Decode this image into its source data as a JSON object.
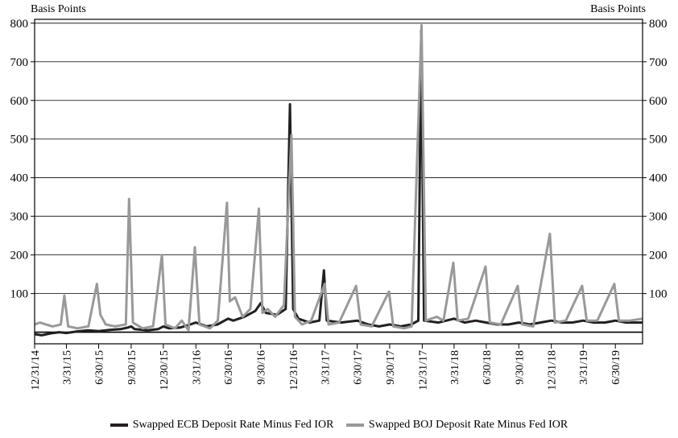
{
  "chart_data": {
    "type": "line",
    "y_unit_left": "Basis Points",
    "y_unit_right": "Basis Points",
    "ylim": [
      -30,
      810
    ],
    "yticks": [
      100,
      200,
      300,
      400,
      500,
      600,
      700,
      800
    ],
    "x_start": "2014-12-31",
    "x_end": "2019-09-15",
    "xticks": [
      "12/31/14",
      "3/31/15",
      "6/30/15",
      "9/30/15",
      "12/30/15",
      "3/31/16",
      "6/30/16",
      "9/30/16",
      "12/31/16",
      "3/31/17",
      "6/30/17",
      "9/30/17",
      "12/31/17",
      "3/31/18",
      "6/30/18",
      "9/30/18",
      "12/31/18",
      "3/31/19",
      "6/30/19"
    ],
    "grid": "horizontal",
    "legend_position": "bottom",
    "series": [
      {
        "name": "Swapped ECB Deposit Rate Minus Fed IOR",
        "color": "#231f20",
        "points": [
          [
            "2014-12-31",
            -5
          ],
          [
            "2015-01-20",
            -8
          ],
          [
            "2015-02-15",
            -3
          ],
          [
            "2015-03-10",
            0
          ],
          [
            "2015-03-31",
            -2
          ],
          [
            "2015-04-30",
            2
          ],
          [
            "2015-05-31",
            5
          ],
          [
            "2015-06-30",
            3
          ],
          [
            "2015-07-31",
            6
          ],
          [
            "2015-08-31",
            8
          ],
          [
            "2015-09-20",
            12
          ],
          [
            "2015-09-30",
            15
          ],
          [
            "2015-10-10",
            8
          ],
          [
            "2015-11-15",
            5
          ],
          [
            "2015-12-15",
            8
          ],
          [
            "2015-12-30",
            15
          ],
          [
            "2016-01-15",
            10
          ],
          [
            "2016-02-15",
            12
          ],
          [
            "2016-03-15",
            20
          ],
          [
            "2016-03-31",
            25
          ],
          [
            "2016-04-30",
            15
          ],
          [
            "2016-05-31",
            20
          ],
          [
            "2016-06-30",
            35
          ],
          [
            "2016-07-15",
            30
          ],
          [
            "2016-08-15",
            40
          ],
          [
            "2016-09-15",
            55
          ],
          [
            "2016-09-30",
            75
          ],
          [
            "2016-10-15",
            50
          ],
          [
            "2016-11-15",
            45
          ],
          [
            "2016-12-10",
            60
          ],
          [
            "2016-12-22",
            590
          ],
          [
            "2016-12-31",
            60
          ],
          [
            "2017-01-15",
            35
          ],
          [
            "2017-02-15",
            25
          ],
          [
            "2017-03-15",
            30
          ],
          [
            "2017-03-28",
            160
          ],
          [
            "2017-04-05",
            30
          ],
          [
            "2017-05-15",
            25
          ],
          [
            "2017-06-30",
            30
          ],
          [
            "2017-07-31",
            20
          ],
          [
            "2017-08-31",
            15
          ],
          [
            "2017-09-30",
            20
          ],
          [
            "2017-10-31",
            15
          ],
          [
            "2017-11-30",
            20
          ],
          [
            "2017-12-20",
            30
          ],
          [
            "2017-12-28",
            780
          ],
          [
            "2018-01-05",
            30
          ],
          [
            "2018-02-15",
            25
          ],
          [
            "2018-03-31",
            35
          ],
          [
            "2018-04-30",
            25
          ],
          [
            "2018-05-31",
            30
          ],
          [
            "2018-06-30",
            25
          ],
          [
            "2018-07-31",
            20
          ],
          [
            "2018-08-31",
            20
          ],
          [
            "2018-09-30",
            25
          ],
          [
            "2018-10-31",
            20
          ],
          [
            "2018-11-30",
            25
          ],
          [
            "2018-12-31",
            30
          ],
          [
            "2019-01-31",
            25
          ],
          [
            "2019-02-28",
            25
          ],
          [
            "2019-03-31",
            30
          ],
          [
            "2019-04-30",
            25
          ],
          [
            "2019-05-31",
            25
          ],
          [
            "2019-06-30",
            30
          ],
          [
            "2019-07-31",
            25
          ],
          [
            "2019-08-31",
            25
          ],
          [
            "2019-09-15",
            25
          ]
        ]
      },
      {
        "name": "Swapped BOJ Deposit Rate Minus Fed IOR",
        "color": "#999999",
        "points": [
          [
            "2014-12-31",
            20
          ],
          [
            "2015-01-15",
            25
          ],
          [
            "2015-02-01",
            20
          ],
          [
            "2015-02-20",
            15
          ],
          [
            "2015-03-15",
            20
          ],
          [
            "2015-03-25",
            95
          ],
          [
            "2015-04-05",
            15
          ],
          [
            "2015-05-01",
            10
          ],
          [
            "2015-06-01",
            15
          ],
          [
            "2015-06-25",
            125
          ],
          [
            "2015-07-05",
            45
          ],
          [
            "2015-07-20",
            20
          ],
          [
            "2015-08-15",
            15
          ],
          [
            "2015-09-15",
            20
          ],
          [
            "2015-09-24",
            345
          ],
          [
            "2015-10-05",
            25
          ],
          [
            "2015-11-01",
            10
          ],
          [
            "2015-12-01",
            15
          ],
          [
            "2015-12-26",
            200
          ],
          [
            "2016-01-05",
            20
          ],
          [
            "2016-02-01",
            10
          ],
          [
            "2016-02-20",
            30
          ],
          [
            "2016-03-10",
            5
          ],
          [
            "2016-03-28",
            220
          ],
          [
            "2016-04-10",
            20
          ],
          [
            "2016-05-10",
            10
          ],
          [
            "2016-06-01",
            30
          ],
          [
            "2016-06-27",
            335
          ],
          [
            "2016-07-05",
            80
          ],
          [
            "2016-07-20",
            90
          ],
          [
            "2016-08-10",
            40
          ],
          [
            "2016-09-01",
            60
          ],
          [
            "2016-09-25",
            320
          ],
          [
            "2016-10-05",
            50
          ],
          [
            "2016-10-20",
            60
          ],
          [
            "2016-11-10",
            40
          ],
          [
            "2016-12-05",
            70
          ],
          [
            "2016-12-26",
            510
          ],
          [
            "2017-01-05",
            40
          ],
          [
            "2017-01-25",
            20
          ],
          [
            "2017-02-20",
            30
          ],
          [
            "2017-03-30",
            125
          ],
          [
            "2017-04-10",
            20
          ],
          [
            "2017-05-10",
            25
          ],
          [
            "2017-06-27",
            120
          ],
          [
            "2017-07-10",
            20
          ],
          [
            "2017-08-10",
            15
          ],
          [
            "2017-09-28",
            105
          ],
          [
            "2017-10-10",
            15
          ],
          [
            "2017-11-10",
            10
          ],
          [
            "2017-12-01",
            15
          ],
          [
            "2017-12-29",
            795
          ],
          [
            "2018-01-10",
            30
          ],
          [
            "2018-02-10",
            40
          ],
          [
            "2018-03-01",
            30
          ],
          [
            "2018-03-29",
            180
          ],
          [
            "2018-04-10",
            30
          ],
          [
            "2018-05-10",
            35
          ],
          [
            "2018-06-28",
            170
          ],
          [
            "2018-07-10",
            25
          ],
          [
            "2018-08-10",
            20
          ],
          [
            "2018-09-27",
            120
          ],
          [
            "2018-10-10",
            20
          ],
          [
            "2018-11-10",
            15
          ],
          [
            "2018-12-27",
            255
          ],
          [
            "2019-01-10",
            25
          ],
          [
            "2019-02-10",
            30
          ],
          [
            "2019-03-28",
            120
          ],
          [
            "2019-04-10",
            30
          ],
          [
            "2019-05-10",
            30
          ],
          [
            "2019-06-27",
            125
          ],
          [
            "2019-07-10",
            30
          ],
          [
            "2019-08-10",
            30
          ],
          [
            "2019-09-15",
            35
          ]
        ]
      }
    ]
  }
}
